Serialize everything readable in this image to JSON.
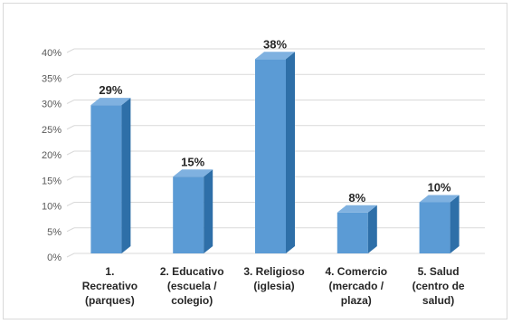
{
  "chart_data": {
    "type": "bar",
    "categories": [
      [
        "1.",
        "Recreativo",
        "(parques)"
      ],
      [
        "2. Educativo",
        "(escuela /",
        "colegio)"
      ],
      [
        "3. Religioso",
        "(iglesia)"
      ],
      [
        "4. Comercio",
        "(mercado /",
        "plaza)"
      ],
      [
        "5. Salud",
        "(centro de",
        "salud)"
      ]
    ],
    "values": [
      29,
      15,
      38,
      8,
      10
    ],
    "data_labels": [
      "29%",
      "15%",
      "38%",
      "8%",
      "10%"
    ],
    "ylim": [
      0,
      40
    ],
    "yticks": [
      "0%",
      "5%",
      "10%",
      "15%",
      "20%",
      "25%",
      "30%",
      "35%",
      "40%"
    ],
    "grid": true,
    "legend": "none",
    "style": "3d-column",
    "colors": {
      "bar_front": "#5b9bd5",
      "bar_side": "#2e6fa8",
      "bar_top": "#7fb1e0",
      "grid": "#d9d9d9"
    }
  }
}
